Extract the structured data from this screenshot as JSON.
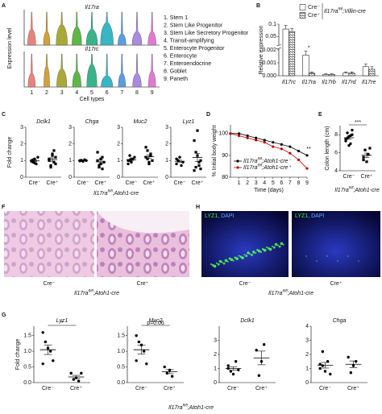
{
  "figure": {
    "panels": [
      "A",
      "B",
      "C",
      "D",
      "E",
      "F",
      "G",
      "H"
    ],
    "genotype": {
      "gene": "Il17ra",
      "sup": "fl/fl",
      "rest": ";Atoh1-cre"
    }
  },
  "images": {
    "f": {
      "labels": [
        "Cre⁻",
        "Cre⁺"
      ]
    },
    "h": {
      "labels": [
        "Cre⁻",
        "Cre⁺"
      ],
      "stain": {
        "marker": "LYZ1",
        "sep": ", ",
        "counter": "DAPI"
      }
    }
  },
  "chart_data": [
    {
      "type": "violin",
      "title": "Il17ra",
      "ylabel": "Expression level",
      "colors": [
        "#e8837c",
        "#d4a03a",
        "#a9a83a",
        "#5fb648",
        "#3bb38a",
        "#3ab5c4",
        "#5a9ee0",
        "#a98be0",
        "#e07ad0"
      ],
      "legend": [
        "1. Stem 1",
        "2. Stem Like Progenitor",
        "3. Stem Like Secretory Progenitor",
        "4. Transit-amplifying",
        "5. Enterocyte Progenitor",
        "6. Enterocyte",
        "7. Enteroendocrine",
        "8. Goblet",
        "9. Paneth"
      ]
    },
    {
      "type": "violin",
      "title": "Il17rc",
      "xlabel": "Cell types",
      "categories": [
        "1",
        "2",
        "3",
        "4",
        "5",
        "6",
        "7",
        "8",
        "9"
      ],
      "colors": [
        "#e8837c",
        "#d4a03a",
        "#a9a83a",
        "#5fb648",
        "#3bb38a",
        "#3ab5c4",
        "#5a9ee0",
        "#a98be0",
        "#e07ad0"
      ]
    },
    {
      "type": "bar",
      "ylabel": "Relative expression",
      "categories": [
        "Il17rc",
        "Il17ra",
        "Il17rb",
        "Il17rd",
        "Il17re"
      ],
      "series": [
        {
          "name": "Cre⁻",
          "color": "#ffffff",
          "values": [
            0.08,
            0.0016,
            0.0001,
            0.0002,
            0.0007
          ],
          "errors": [
            0.015,
            0.0003,
            5e-05,
            0.0001,
            0.0002
          ]
        },
        {
          "name": "Cre⁺",
          "color": "#ffffff",
          "pattern": "hatch",
          "values": [
            0.07,
            0.0002,
            0.0001,
            0.0002,
            0.0005
          ],
          "errors": [
            0.012,
            0.0001,
            5e-05,
            0.0001,
            0.0002
          ]
        }
      ],
      "legend_title": {
        "gene": "Il17ra",
        "sup": "fl/fl",
        "rest": ";Villin-cre"
      },
      "ylim": [
        0,
        0.1
      ],
      "ybreak": [
        0.002,
        0.02
      ],
      "yticks": [
        {
          "value": 0,
          "label": "0.000"
        },
        0.001,
        0.002,
        0.05,
        0.1
      ],
      "annotations": [
        {
          "category": 1,
          "text": "*"
        }
      ]
    },
    {
      "type": "dot",
      "title": "Dclk1",
      "ylabel": "Fold change",
      "categories": [
        "Cre⁻",
        "Cre⁺"
      ],
      "markers": [
        "circle",
        "square"
      ],
      "values": [
        [
          1.0,
          0.9,
          1.1,
          0.8,
          1.2,
          0.95,
          1.05,
          0.85
        ],
        [
          1.0,
          0.7,
          1.3,
          1.6,
          0.8,
          1.1,
          0.6,
          1.4,
          0.9,
          1.2
        ]
      ],
      "ylim": [
        0,
        3
      ],
      "yticks": [
        0,
        1,
        2,
        3
      ]
    },
    {
      "type": "dot",
      "title": "Chga",
      "categories": [
        "Cre⁻",
        "Cre⁺"
      ],
      "markers": [
        "circle",
        "square"
      ],
      "values": [
        [
          1.0,
          1.0,
          0.95,
          1.05,
          1.0,
          0.98,
          1.02
        ],
        [
          1.0,
          0.6,
          0.8,
          1.2,
          0.9,
          1.5,
          0.7,
          1.1,
          0.5
        ]
      ],
      "ylim": [
        0,
        3
      ],
      "yticks": [
        0,
        1,
        2,
        3
      ]
    },
    {
      "type": "dot",
      "title": "Muc2",
      "categories": [
        "Cre⁻",
        "Cre⁺"
      ],
      "markers": [
        "circle",
        "square"
      ],
      "values": [
        [
          1.0,
          1.3,
          0.9,
          1.1,
          1.2,
          0.8,
          1.0,
          1.1
        ],
        [
          1.2,
          1.6,
          0.9,
          1.4,
          1.0,
          1.8,
          1.1,
          0.8,
          1.3
        ]
      ],
      "ylim": [
        0,
        3
      ],
      "yticks": [
        0,
        1,
        2,
        3
      ]
    },
    {
      "type": "dot",
      "title": "Lyz1",
      "categories": [
        "Cre⁻",
        "Cre⁺"
      ],
      "markers": [
        "circle",
        "square"
      ],
      "values": [
        [
          0.8,
          1.0,
          1.2,
          0.7,
          0.9,
          1.1,
          1.0
        ],
        [
          0.4,
          1.5,
          2.8,
          0.7,
          1.0,
          2.2,
          0.6,
          1.3,
          0.9,
          0.5
        ]
      ],
      "ylim": [
        0,
        3
      ],
      "yticks": [
        0,
        1,
        2,
        3
      ]
    },
    {
      "type": "line",
      "ylabel": "% Initial body weight",
      "xlabel": "Time (days)",
      "x": [
        0,
        1,
        2,
        3,
        4,
        5,
        6,
        7,
        8,
        9
      ],
      "xlim": [
        0,
        9
      ],
      "xticks": [
        1,
        2,
        3,
        4,
        5,
        6,
        7,
        8,
        9
      ],
      "series": [
        {
          "label": {
            "gene": "Il17ra",
            "sup": "fl/fl",
            "rest": ";Atoh1-cre⁻"
          },
          "color": "#000000",
          "values": [
            100,
            100,
            99,
            98,
            97,
            96,
            95,
            94,
            92,
            90
          ]
        },
        {
          "label": {
            "gene": "Il17ra",
            "sup": "fl/fl",
            "rest": ";Atoh1-cre⁺"
          },
          "color": "#c00000",
          "values": [
            100,
            99,
            98,
            97,
            96,
            94,
            93,
            91,
            88,
            84
          ]
        }
      ],
      "ylim": [
        80,
        104
      ],
      "yticks": [
        80,
        90,
        100
      ],
      "annotation": "**"
    },
    {
      "type": "dot",
      "ylabel": "Colon length (cm)",
      "categories": [
        "Cre⁻",
        "Cre⁺"
      ],
      "markers": [
        "circle",
        "square"
      ],
      "values": [
        [
          7.5,
          8.2,
          7.8,
          7.0,
          8.5,
          7.3,
          7.6,
          6.8,
          7.9,
          8.0
        ],
        [
          5.5,
          6.3,
          5.0,
          5.8,
          6.5,
          5.2
        ]
      ],
      "ylim": [
        4,
        9
      ],
      "yticks": [
        4,
        6,
        8
      ],
      "annotation": "***"
    },
    {
      "type": "dot",
      "title": "Lyz1",
      "ylabel": "Fold change",
      "categories": [
        "Cre⁻",
        "Cre⁺"
      ],
      "markers": [
        "circle",
        "circle"
      ],
      "values": [
        [
          1.6,
          1.3,
          1.1,
          1.0,
          0.7,
          0.6
        ],
        [
          0.3,
          0.1,
          0.15,
          0.05,
          0.3
        ]
      ],
      "ylim": [
        0,
        1.8
      ],
      "yticks": [
        {
          "value": 0,
          "label": "0.0"
        },
        0.5,
        {
          "value": 1,
          "label": "1.0"
        },
        1.5
      ],
      "annotation": "*"
    },
    {
      "type": "dot",
      "title": "Muc2",
      "categories": [
        "Cre⁻",
        "Cre⁺"
      ],
      "markers": [
        "circle",
        "circle"
      ],
      "values": [
        [
          1.5,
          1.3,
          1.2,
          1.0,
          0.6,
          0.7
        ],
        [
          0.5,
          0.3,
          0.4,
          0.2
        ]
      ],
      "ylim": [
        0,
        1.8
      ],
      "yticks": [
        {
          "value": 0,
          "label": "0.0"
        },
        0.5,
        {
          "value": 1,
          "label": "1.0"
        },
        1.5
      ],
      "annotation": "p=0.06"
    },
    {
      "type": "dot",
      "title": "Dclk1",
      "categories": [
        "Cre⁻",
        "Cre⁺"
      ],
      "markers": [
        "circle",
        "circle"
      ],
      "values": [
        [
          1.0,
          0.8,
          0.6,
          1.5,
          0.9,
          1.2
        ],
        [
          2.3,
          0.5,
          1.5,
          2.7
        ]
      ],
      "ylim": [
        0,
        4
      ],
      "yticks": [
        0,
        1,
        2,
        3
      ]
    },
    {
      "type": "dot",
      "title": "Chga",
      "categories": [
        "Cre⁻",
        "Cre⁺"
      ],
      "markers": [
        "circle",
        "circle"
      ],
      "values": [
        [
          1.3,
          2.2,
          0.8,
          1.5,
          0.6,
          1.0,
          1.2
        ],
        [
          1.8,
          0.7,
          1.2,
          1.5
        ]
      ],
      "ylim": [
        0,
        4
      ],
      "yticks": [
        0,
        1,
        2,
        3,
        4
      ]
    }
  ]
}
